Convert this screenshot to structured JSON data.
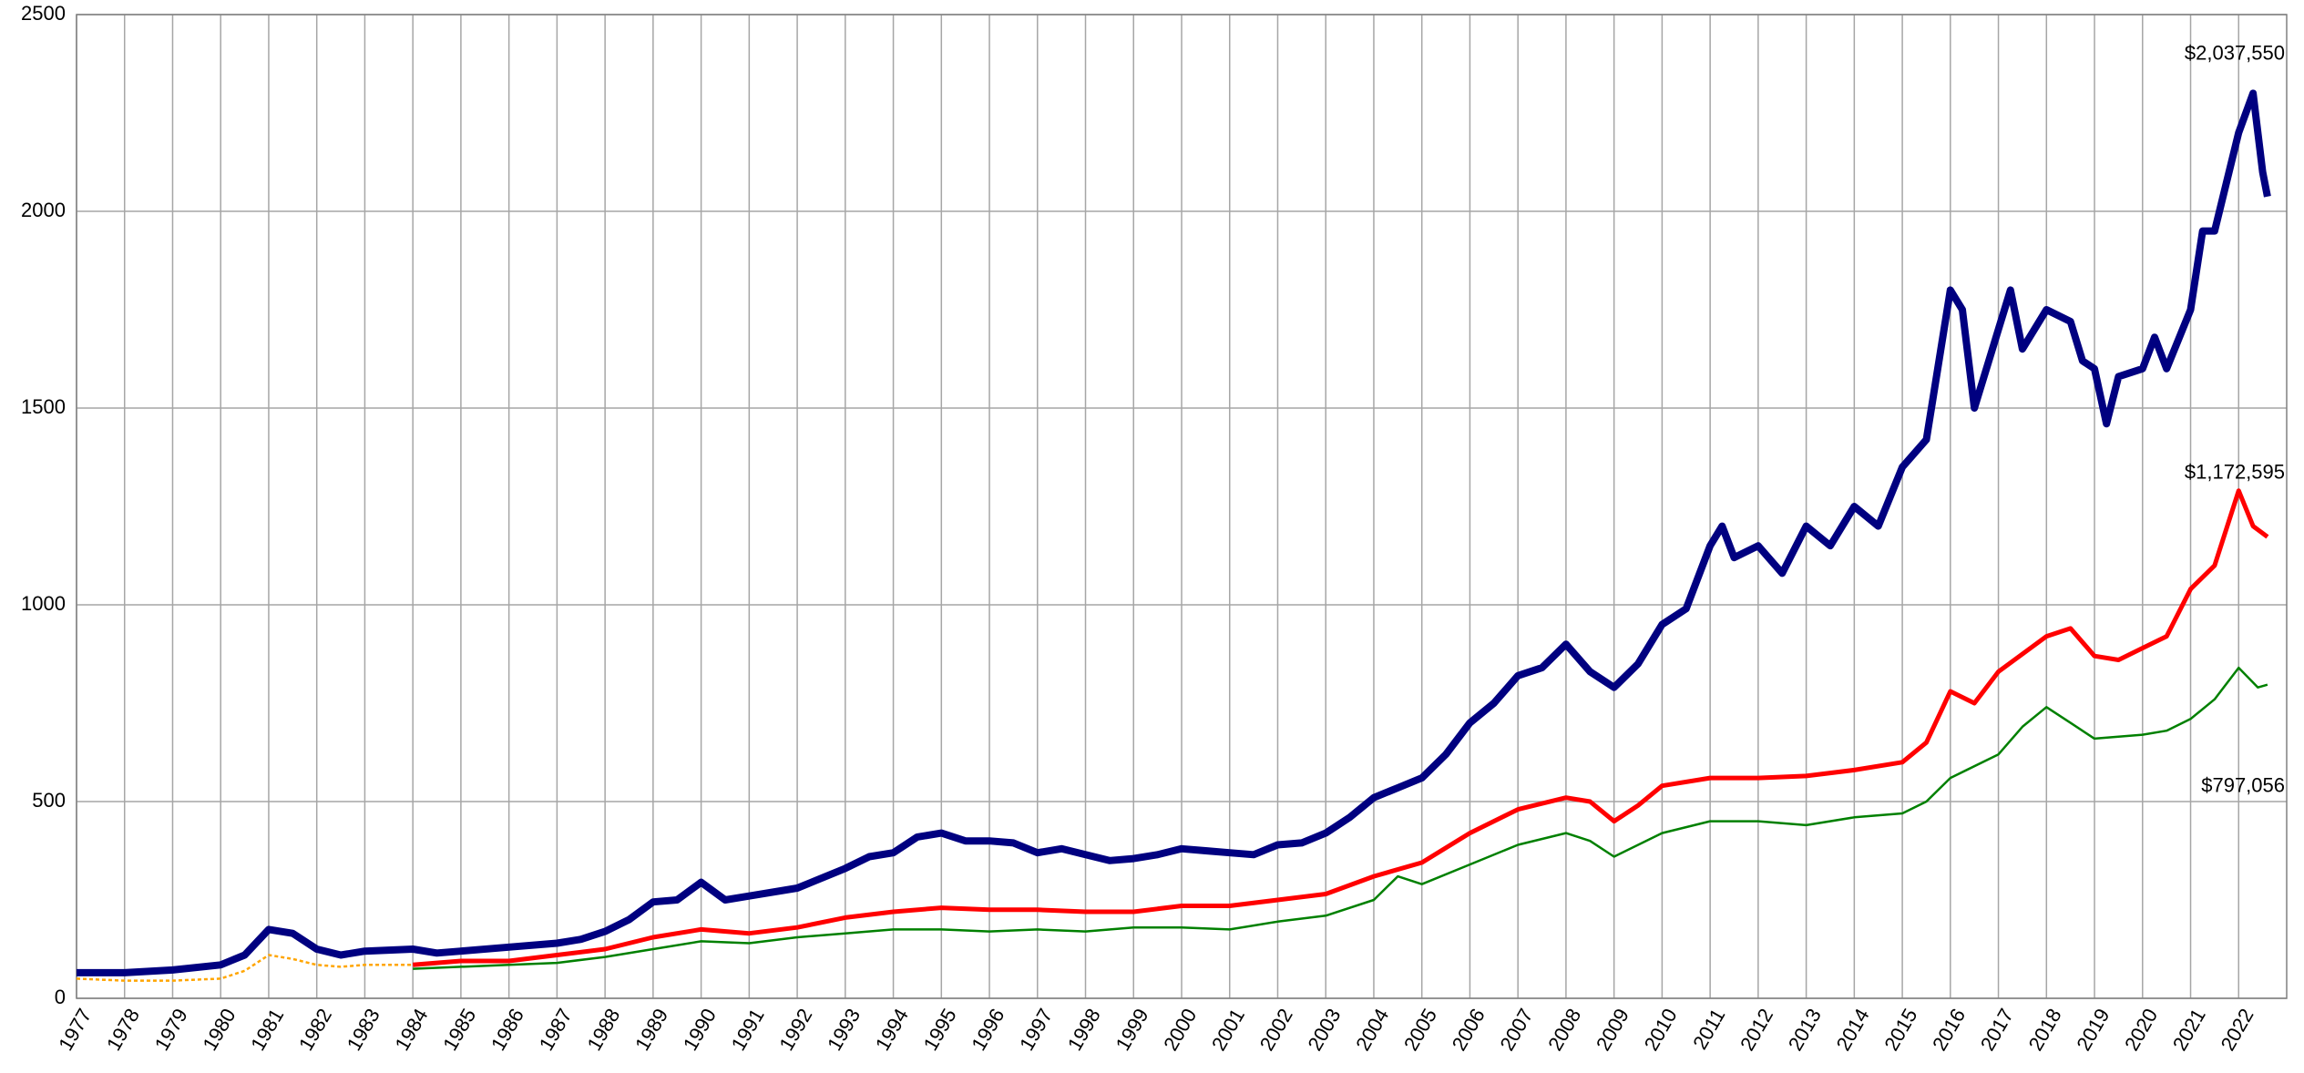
{
  "chart_data": {
    "type": "line",
    "xlim": [
      1977,
      2023
    ],
    "xticks": [
      1977,
      1978,
      1979,
      1980,
      1981,
      1982,
      1983,
      1984,
      1985,
      1986,
      1987,
      1988,
      1989,
      1990,
      1991,
      1992,
      1993,
      1994,
      1995,
      1996,
      1997,
      1998,
      1999,
      2000,
      2001,
      2002,
      2003,
      2004,
      2005,
      2006,
      2007,
      2008,
      2009,
      2010,
      2011,
      2012,
      2013,
      2014,
      2015,
      2016,
      2017,
      2018,
      2019,
      2020,
      2021,
      2022
    ],
    "ylim": [
      0,
      2500
    ],
    "yticks": [
      0,
      500,
      1000,
      1500,
      2000,
      2500
    ],
    "grid": true,
    "series": [
      {
        "color": "#000080",
        "end_label": "$2,037,550",
        "x": [
          1977,
          1978,
          1979,
          1980,
          1980.5,
          1981,
          1981.5,
          1982,
          1982.5,
          1983,
          1984,
          1984.5,
          1985,
          1986,
          1987,
          1987.5,
          1988,
          1988.5,
          1989,
          1989.5,
          1990,
          1990.5,
          1991,
          1992,
          1992.5,
          1993,
          1993.5,
          1994,
          1994.5,
          1995,
          1995.5,
          1996,
          1996.5,
          1997,
          1997.5,
          1998,
          1998.5,
          1999,
          1999.5,
          2000,
          2000.5,
          2001,
          2001.5,
          2002,
          2002.5,
          2003,
          2003.5,
          2004,
          2004.5,
          2005,
          2005.5,
          2006,
          2006.5,
          2007,
          2007.5,
          2008,
          2008.5,
          2009,
          2009.5,
          2010,
          2010.5,
          2011,
          2011.25,
          2011.5,
          2012,
          2012.5,
          2013,
          2013.5,
          2014,
          2014.5,
          2015,
          2015.5,
          2016,
          2016.25,
          2016.5,
          2017,
          2017.25,
          2017.5,
          2018,
          2018.5,
          2018.75,
          2019,
          2019.25,
          2019.5,
          2020,
          2020.25,
          2020.5,
          2021,
          2021.25,
          2021.5,
          2022,
          2022.3,
          2022.5,
          2022.6
        ],
        "values": [
          65,
          65,
          72,
          85,
          110,
          175,
          165,
          125,
          110,
          120,
          125,
          115,
          120,
          130,
          140,
          150,
          170,
          200,
          245,
          250,
          295,
          250,
          260,
          280,
          305,
          330,
          360,
          370,
          410,
          420,
          400,
          400,
          395,
          370,
          380,
          365,
          350,
          355,
          365,
          380,
          375,
          370,
          365,
          390,
          395,
          420,
          460,
          510,
          535,
          560,
          620,
          700,
          750,
          820,
          840,
          900,
          830,
          790,
          850,
          950,
          990,
          1150,
          1200,
          1120,
          1150,
          1080,
          1200,
          1150,
          1250,
          1200,
          1350,
          1420,
          1800,
          1750,
          1500,
          1700,
          1800,
          1650,
          1750,
          1720,
          1620,
          1600,
          1460,
          1580,
          1600,
          1680,
          1600,
          1750,
          1950,
          1950,
          2200,
          2300,
          2100,
          2037.55
        ]
      },
      {
        "color": "#ff0000",
        "end_label": "$1,172,595",
        "x": [
          1984,
          1985,
          1986,
          1987,
          1988,
          1989,
          1990,
          1991,
          1992,
          1993,
          1994,
          1995,
          1996,
          1997,
          1998,
          1999,
          2000,
          2001,
          2002,
          2003,
          2004,
          2005,
          2006,
          2007,
          2008,
          2008.5,
          2009,
          2009.5,
          2010,
          2011,
          2012,
          2013,
          2014,
          2015,
          2015.5,
          2016,
          2016.5,
          2017,
          2018,
          2018.5,
          2019,
          2019.5,
          2020,
          2020.5,
          2021,
          2021.5,
          2022,
          2022.3,
          2022.6
        ],
        "values": [
          85,
          95,
          95,
          110,
          125,
          155,
          175,
          165,
          180,
          205,
          220,
          230,
          225,
          225,
          220,
          220,
          235,
          235,
          250,
          265,
          310,
          345,
          420,
          480,
          510,
          500,
          450,
          490,
          540,
          560,
          560,
          565,
          580,
          600,
          650,
          780,
          750,
          830,
          920,
          940,
          870,
          860,
          890,
          920,
          1040,
          1100,
          1290,
          1200,
          1172.595
        ]
      },
      {
        "color": "#008000",
        "end_label": "$797,056",
        "x": [
          1984,
          1985,
          1986,
          1987,
          1988,
          1989,
          1990,
          1991,
          1992,
          1993,
          1994,
          1995,
          1996,
          1997,
          1998,
          1999,
          2000,
          2001,
          2002,
          2003,
          2004,
          2004.5,
          2005,
          2006,
          2007,
          2008,
          2008.5,
          2009,
          2010,
          2011,
          2012,
          2013,
          2014,
          2015,
          2015.5,
          2016,
          2017,
          2017.5,
          2018,
          2018.5,
          2019,
          2020,
          2020.5,
          2021,
          2021.5,
          2022,
          2022.4,
          2022.6
        ],
        "values": [
          75,
          80,
          85,
          90,
          105,
          125,
          145,
          140,
          155,
          165,
          175,
          175,
          170,
          175,
          170,
          180,
          180,
          175,
          195,
          210,
          250,
          310,
          290,
          340,
          390,
          420,
          400,
          360,
          420,
          450,
          450,
          440,
          460,
          470,
          500,
          560,
          620,
          690,
          740,
          700,
          660,
          670,
          680,
          710,
          760,
          840,
          790,
          797.056
        ]
      },
      {
        "color": "#ffa500",
        "x": [
          1977,
          1978,
          1979,
          1980,
          1980.5,
          1981,
          1981.5,
          1982,
          1982.5,
          1983,
          1984
        ],
        "values": [
          50,
          45,
          45,
          50,
          70,
          110,
          100,
          85,
          80,
          85,
          85
        ]
      }
    ]
  }
}
